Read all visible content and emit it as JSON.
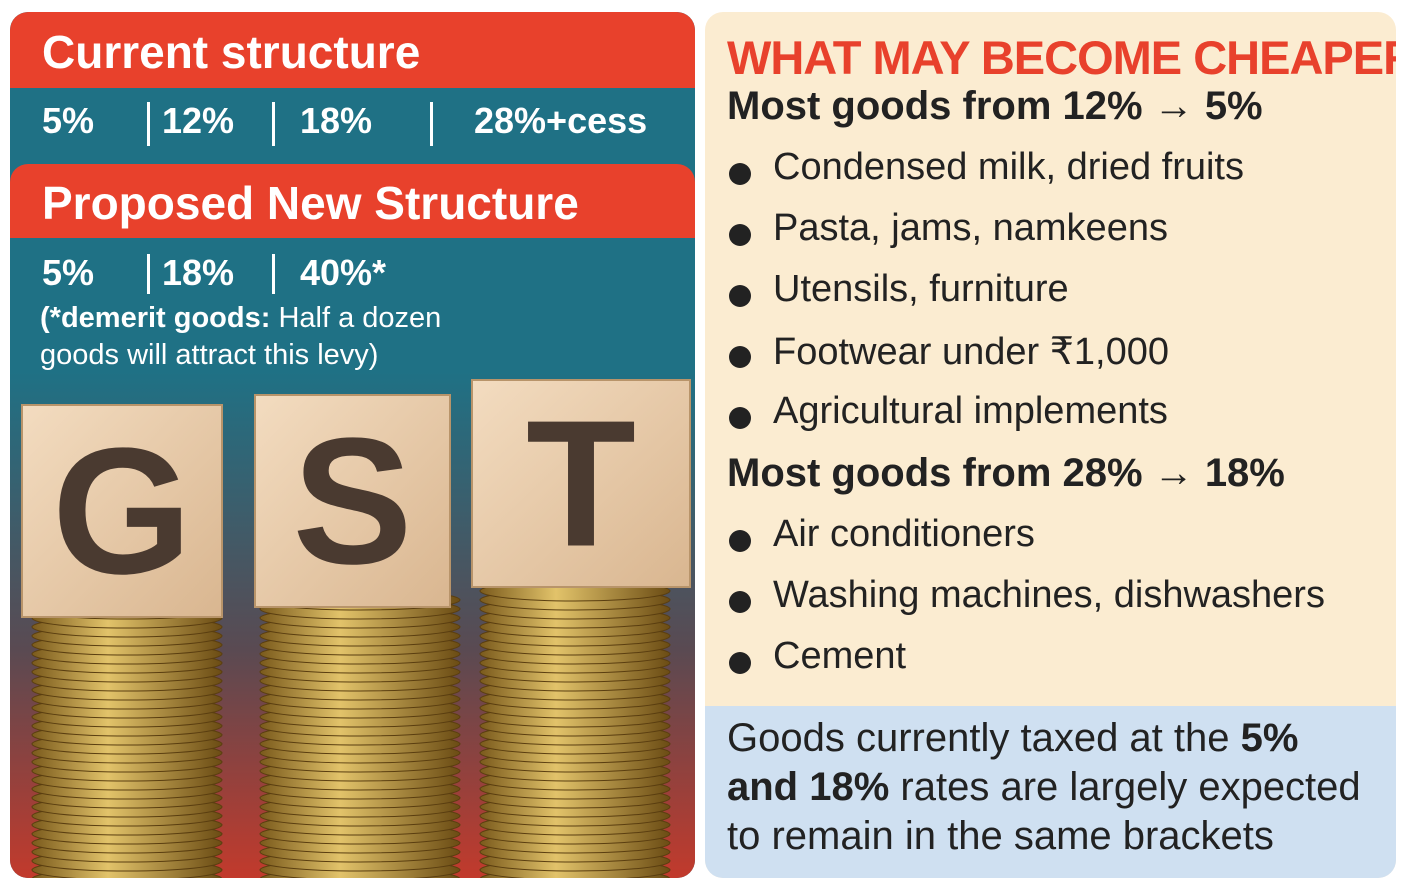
{
  "left": {
    "current": {
      "title": "Current structure",
      "rates": [
        "5%",
        "12%",
        "18%",
        "28%+cess"
      ]
    },
    "proposed": {
      "title": "Proposed New Structure",
      "rates": [
        "5%",
        "18%",
        "40%*"
      ],
      "note": {
        "bold": "(*demerit goods:",
        "text": " Half a dozen goods will attract this levy)"
      }
    },
    "image": {
      "letters": [
        "G",
        "S",
        "T"
      ]
    }
  },
  "right": {
    "title": "WHAT MAY BECOME CHEAPER",
    "groups": [
      {
        "heading": "Most goods from 12% → 5%",
        "items": [
          "Condensed milk, dried fruits",
          "Pasta, jams, namkeens",
          "Utensils, furniture",
          "Footwear under ₹1,000",
          "Agricultural implements"
        ]
      },
      {
        "heading": "Most goods from 28% → 18%",
        "items": [
          "Air conditioners",
          "Washing machines, dishwashers",
          "Cement"
        ]
      }
    ],
    "footer": {
      "text1": "Goods currently taxed at the ",
      "bold": "5% and 18%",
      "text2": " rates are largely expected to remain in the same brackets"
    }
  }
}
